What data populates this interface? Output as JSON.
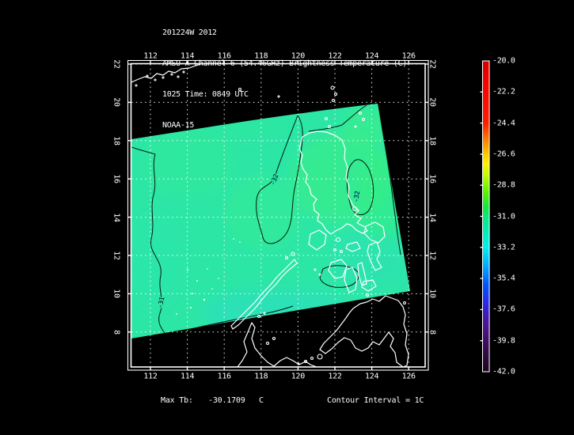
{
  "header": {
    "line1": "201224W 2012",
    "line2": "AMSU-A Channel 6 (54.46GHz) Brightness Temperature (C)",
    "line3": "1025 Time: 0849 UTC",
    "line4": "NOAA-15"
  },
  "footer": {
    "max_tb_label": "Max Tb:",
    "max_tb_value": "-30.1709",
    "max_tb_unit": "C",
    "contour_note": "Contour Interval = 1C"
  },
  "chart_data": {
    "type": "heatmap",
    "title": "AMSU-A Channel 6 (54.46GHz) Brightness Temperature (C)",
    "storm_id": "201224W 2012",
    "sensor_time": "1025 Time: 0849 UTC",
    "satellite": "NOAA-15",
    "x_axis": {
      "ticks": [
        112,
        114,
        116,
        118,
        120,
        122,
        124,
        126
      ]
    },
    "y_axis": {
      "ticks": [
        22,
        20,
        18,
        16,
        14,
        12,
        10,
        8
      ]
    },
    "grid": true,
    "map_region": "Philippines / South China Sea",
    "colorbar": {
      "units": "C",
      "max": -20.0,
      "min": -42.0,
      "tick_labels": [
        "-20.0",
        "-22.2",
        "-24.4",
        "-26.6",
        "-28.8",
        "-31.0",
        "-33.2",
        "-35.4",
        "-37.6",
        "-39.8",
        "-42.0"
      ],
      "stops": [
        {
          "pos": 0.0,
          "color": "#d40000"
        },
        {
          "pos": 0.06,
          "color": "#f20000"
        },
        {
          "pos": 0.2,
          "color": "#ff1e00"
        },
        {
          "pos": 0.25,
          "color": "#ff7700"
        },
        {
          "pos": 0.3,
          "color": "#ffc800"
        },
        {
          "pos": 0.33,
          "color": "#fff200"
        },
        {
          "pos": 0.37,
          "color": "#c0fc00"
        },
        {
          "pos": 0.42,
          "color": "#5ef200"
        },
        {
          "pos": 0.47,
          "color": "#14e63e"
        },
        {
          "pos": 0.5,
          "color": "#0ae87e"
        },
        {
          "pos": 0.55,
          "color": "#00edb6"
        },
        {
          "pos": 0.6,
          "color": "#00f0f0"
        },
        {
          "pos": 0.66,
          "color": "#00aaff"
        },
        {
          "pos": 0.72,
          "color": "#0055ff"
        },
        {
          "pos": 0.78,
          "color": "#2a28e8"
        },
        {
          "pos": 0.82,
          "color": "#4418b4"
        },
        {
          "pos": 0.86,
          "color": "#4c1288"
        },
        {
          "pos": 0.91,
          "color": "#3c0e5c"
        },
        {
          "pos": 0.96,
          "color": "#2a0838"
        },
        {
          "pos": 1.0,
          "color": "#1e0520"
        }
      ]
    },
    "swath": {
      "fill_color": "#2ce6a6",
      "corners_lonlat": [
        [
          111.0,
          18.1
        ],
        [
          124.3,
          19.9
        ],
        [
          126.1,
          10.1
        ],
        [
          111.0,
          7.7
        ]
      ],
      "tb_range_c": [
        -32.5,
        -30.17
      ]
    },
    "contours": {
      "interval_c": 1,
      "labels": [
        "-32",
        "-32",
        "-31"
      ]
    },
    "max_tb_c": -30.1709
  }
}
